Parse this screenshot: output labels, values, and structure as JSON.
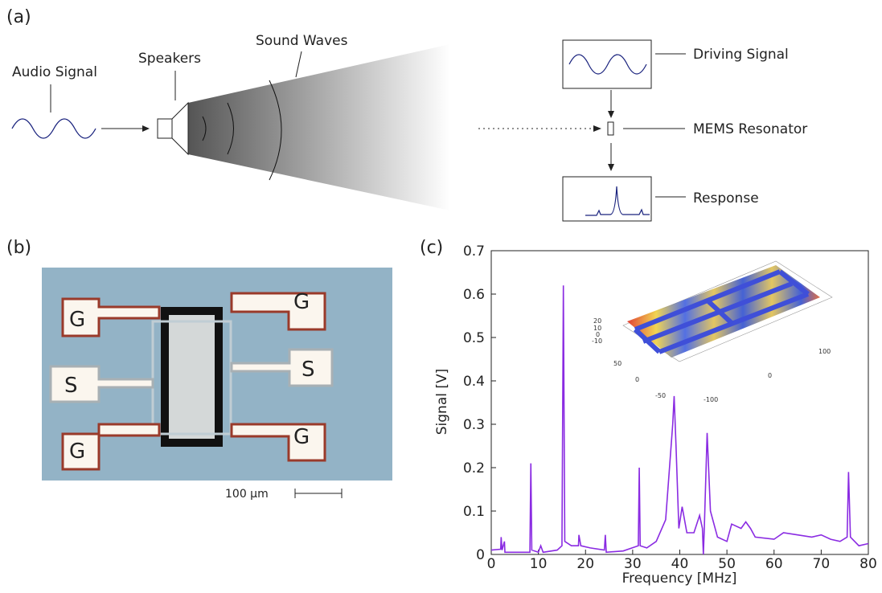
{
  "panel_a": {
    "label": "(a)",
    "audio": "Audio Signal",
    "speakers": "Speakers",
    "waves": "Sound Waves",
    "driving": "Driving Signal",
    "mems": "MEMS Resonator",
    "response": "Response"
  },
  "panel_b": {
    "label": "(b)",
    "pads": [
      "G",
      "G",
      "S",
      "S",
      "G",
      "G"
    ],
    "scale": "100 μm"
  },
  "panel_c": {
    "label": "(c)",
    "inset_labels": [
      "20",
      "10",
      "0",
      "-10",
      "50",
      "0",
      "-50",
      "-100",
      "0",
      "100"
    ]
  },
  "chart_data": {
    "type": "line",
    "xlabel": "Frequency [MHz]",
    "ylabel": "Signal [V]",
    "color": "#8a2be2",
    "x": [
      0,
      2,
      2.1,
      2.3,
      2.8,
      2.9,
      5,
      8.2,
      8.4,
      8.6,
      10,
      10.5,
      11,
      14,
      15,
      15.3,
      15.6,
      17,
      18.5,
      18.6,
      19,
      21,
      24,
      24.2,
      24.4,
      28,
      31.2,
      31.4,
      31.6,
      33,
      35,
      37,
      38.5,
      38.8,
      39.2,
      39.8,
      40.5,
      41.5,
      43,
      44.2,
      44.8,
      45,
      45.2,
      45.8,
      46.5,
      48,
      50,
      51,
      53,
      54,
      55,
      56,
      60,
      62,
      65,
      68,
      70,
      72,
      74,
      75.5,
      75.8,
      76.2,
      78,
      80
    ],
    "values": [
      0.01,
      0.012,
      0.04,
      0.01,
      0.03,
      0.005,
      0.005,
      0.005,
      0.21,
      0.01,
      0.005,
      0.02,
      0.005,
      0.01,
      0.02,
      0.62,
      0.03,
      0.02,
      0.02,
      0.045,
      0.02,
      0.015,
      0.01,
      0.045,
      0.005,
      0.008,
      0.02,
      0.2,
      0.02,
      0.015,
      0.03,
      0.08,
      0.3,
      0.365,
      0.25,
      0.06,
      0.11,
      0.05,
      0.05,
      0.09,
      0.06,
      0.0,
      0.06,
      0.28,
      0.1,
      0.04,
      0.03,
      0.07,
      0.06,
      0.075,
      0.06,
      0.04,
      0.035,
      0.05,
      0.045,
      0.04,
      0.045,
      0.035,
      0.03,
      0.04,
      0.19,
      0.04,
      0.02,
      0.025
    ],
    "xlim": [
      0,
      80
    ],
    "ylim": [
      0,
      0.7
    ],
    "xticks": [
      0,
      10,
      20,
      30,
      40,
      50,
      60,
      70,
      80
    ],
    "yticks": [
      0,
      0.1,
      0.2,
      0.3,
      0.4,
      0.5,
      0.6,
      0.7
    ]
  }
}
